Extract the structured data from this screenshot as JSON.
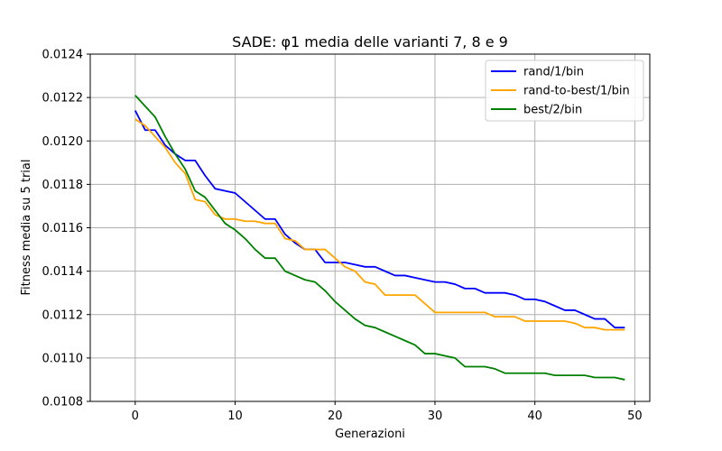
{
  "chart_data": {
    "type": "line",
    "title": "SADE: φ1 media delle varianti 7, 8 e 9",
    "xlabel": "Generazioni",
    "ylabel": "Fitness media su 5 trial",
    "xlim": [
      -4.5,
      51.5
    ],
    "ylim": [
      0.0108,
      0.0124
    ],
    "xticks": [
      0,
      10,
      20,
      30,
      40,
      50
    ],
    "yticks": [
      0.0108,
      0.011,
      0.0112,
      0.0114,
      0.0116,
      0.0118,
      0.012,
      0.0122,
      0.0124
    ],
    "ytick_labels": [
      "0.0108",
      "0.0110",
      "0.0112",
      "0.0114",
      "0.0116",
      "0.0118",
      "0.0120",
      "0.0122",
      "0.0124"
    ],
    "grid": true,
    "legend_position": "top-right",
    "x": [
      0,
      1,
      2,
      3,
      4,
      5,
      6,
      7,
      8,
      9,
      10,
      11,
      12,
      13,
      14,
      15,
      16,
      17,
      18,
      19,
      20,
      21,
      22,
      23,
      24,
      25,
      26,
      27,
      28,
      29,
      30,
      31,
      32,
      33,
      34,
      35,
      36,
      37,
      38,
      39,
      40,
      41,
      42,
      43,
      44,
      45,
      46,
      47,
      48,
      49
    ],
    "series": [
      {
        "name": "rand/1/bin",
        "color": "#0000ff",
        "values": [
          0.01214,
          0.01205,
          0.01205,
          0.01198,
          0.01194,
          0.01191,
          0.01191,
          0.01184,
          0.01178,
          0.01177,
          0.01176,
          0.01172,
          0.01168,
          0.01164,
          0.01164,
          0.01157,
          0.01153,
          0.0115,
          0.0115,
          0.01144,
          0.01144,
          0.01144,
          0.01143,
          0.01142,
          0.01142,
          0.0114,
          0.01138,
          0.01138,
          0.01137,
          0.01136,
          0.01135,
          0.01135,
          0.01134,
          0.01132,
          0.01132,
          0.0113,
          0.0113,
          0.0113,
          0.01129,
          0.01127,
          0.01127,
          0.01126,
          0.01124,
          0.01122,
          0.01122,
          0.0112,
          0.01118,
          0.01118,
          0.01114,
          0.01114
        ]
      },
      {
        "name": "rand-to-best/1/bin",
        "color": "#ffa500",
        "values": [
          0.0121,
          0.01207,
          0.01202,
          0.01197,
          0.0119,
          0.01185,
          0.01173,
          0.01172,
          0.01166,
          0.01164,
          0.01164,
          0.01163,
          0.01163,
          0.01162,
          0.01162,
          0.01155,
          0.01154,
          0.0115,
          0.0115,
          0.0115,
          0.01146,
          0.01142,
          0.0114,
          0.01135,
          0.01134,
          0.01129,
          0.01129,
          0.01129,
          0.01129,
          0.01125,
          0.01121,
          0.01121,
          0.01121,
          0.01121,
          0.01121,
          0.01121,
          0.01119,
          0.01119,
          0.01119,
          0.01117,
          0.01117,
          0.01117,
          0.01117,
          0.01117,
          0.01116,
          0.01114,
          0.01114,
          0.01113,
          0.01113,
          0.01113
        ]
      },
      {
        "name": "best/2/bin",
        "color": "#008000",
        "values": [
          0.01221,
          0.01216,
          0.01211,
          0.01202,
          0.01194,
          0.01187,
          0.01177,
          0.01174,
          0.01168,
          0.01162,
          0.01159,
          0.01155,
          0.0115,
          0.01146,
          0.01146,
          0.0114,
          0.01138,
          0.01136,
          0.01135,
          0.01131,
          0.01126,
          0.01122,
          0.01118,
          0.01115,
          0.01114,
          0.01112,
          0.0111,
          0.01108,
          0.01106,
          0.01102,
          0.01102,
          0.01101,
          0.011,
          0.01096,
          0.01096,
          0.01096,
          0.01095,
          0.01093,
          0.01093,
          0.01093,
          0.01093,
          0.01093,
          0.01092,
          0.01092,
          0.01092,
          0.01092,
          0.01091,
          0.01091,
          0.01091,
          0.0109
        ]
      }
    ]
  }
}
